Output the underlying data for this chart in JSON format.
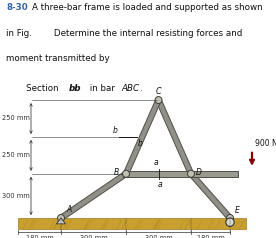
{
  "title_number": "8-30",
  "title_line1": "A three-bar frame is loaded and supported as shown",
  "title_line2": "in Fig.        Determine the internal resisting forces and",
  "title_line3": "moment transmitted by",
  "section_pre": "Section ",
  "section_bb": "bb",
  "section_mid": " in bar ",
  "section_ABC": "ABC",
  "section_dot": ".",
  "load_value": "900 N",
  "bar_color": "#909088",
  "bar_edge": "#505048",
  "ground_color": "#c8a030",
  "ground_edge": "#a07820",
  "arrow_color": "#880000",
  "text_color": "#111111",
  "title_num_color": "#3366aa",
  "joint_face": "#c0bfb0",
  "joint_edge": "#404038",
  "dim_color": "#333333"
}
